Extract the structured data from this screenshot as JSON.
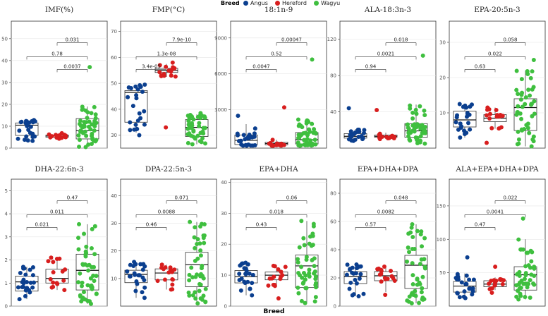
{
  "legend": {
    "title": "Breed",
    "items": [
      {
        "label": "Angus",
        "color": "#0b3f8f"
      },
      {
        "label": "Hereford",
        "color": "#d81e1e"
      },
      {
        "label": "Wagyu",
        "color": "#3fbf3f"
      }
    ]
  },
  "xlabel": "Breed",
  "chart_data": [
    {
      "type": "box",
      "title": "IMF(%)",
      "ylim": [
        0,
        58
      ],
      "yticks": [
        0,
        10,
        20,
        30,
        40,
        50
      ],
      "boxes": [
        {
          "group": "Angus",
          "q1": 5.8,
          "median": 10.5,
          "q3": 11.5,
          "lo": 3.3,
          "hi": 12.6,
          "min": 3.3,
          "max": 12.8
        },
        {
          "group": "Hereford",
          "q1": 5,
          "median": 5.5,
          "q3": 6,
          "lo": 4.5,
          "hi": 6.5,
          "min": 4.3,
          "max": 6.8
        },
        {
          "group": "Wagyu",
          "q1": 4.2,
          "median": 8,
          "q3": 13.5,
          "lo": 0.5,
          "hi": 19,
          "min": 0.5,
          "max": 37
        }
      ],
      "brackets": [
        {
          "from": 1,
          "to": 2,
          "label": "0.0037"
        },
        {
          "from": 0,
          "to": 2,
          "label": "0.78"
        },
        {
          "from": 1,
          "to": 2,
          "label": "0.031"
        }
      ]
    },
    {
      "type": "box",
      "title": "FMP(°C)",
      "ylim": [
        25,
        74
      ],
      "yticks": [
        30,
        40,
        50,
        60,
        70
      ],
      "boxes": [
        {
          "group": "Angus",
          "q1": 35,
          "median": 46.5,
          "q3": 47.2,
          "lo": 31,
          "hi": 49.5,
          "min": 30,
          "max": 49.5
        },
        {
          "group": "Hereford",
          "q1": 54.2,
          "median": 55,
          "q3": 55.8,
          "lo": 52.5,
          "hi": 57.5,
          "min": 33,
          "max": 58
        },
        {
          "group": "Wagyu",
          "q1": 29.5,
          "median": 33,
          "q3": 36,
          "lo": 26.5,
          "hi": 38,
          "min": 26.5,
          "max": 38.5
        }
      ],
      "brackets": [
        {
          "from": 0,
          "to": 1,
          "label": "3.4e-05"
        },
        {
          "from": 0,
          "to": 2,
          "label": "1.3e-08"
        },
        {
          "from": 1,
          "to": 2,
          "label": "7.9e-10"
        }
      ]
    },
    {
      "type": "box",
      "title": "18:1n-9",
      "ylim": [
        -200,
        10400
      ],
      "yticks": [
        3000,
        6000,
        9000
      ],
      "boxes": [
        {
          "group": "Angus",
          "q1": 100,
          "median": 450,
          "q3": 900,
          "lo": 0,
          "hi": 1800,
          "min": 0,
          "max": 2500
        },
        {
          "group": "Hereford",
          "q1": 80,
          "median": 180,
          "q3": 300,
          "lo": 0,
          "hi": 500,
          "min": 0,
          "max": 3200
        },
        {
          "group": "Wagyu",
          "q1": 150,
          "median": 500,
          "q3": 1100,
          "lo": 0,
          "hi": 2200,
          "min": 0,
          "max": 7200
        }
      ],
      "brackets": [
        {
          "from": 0,
          "to": 1,
          "label": "0.0047"
        },
        {
          "from": 0,
          "to": 2,
          "label": "0.52"
        },
        {
          "from": 1,
          "to": 2,
          "label": "0.00047"
        }
      ]
    },
    {
      "type": "box",
      "title": "ALA-18:3n-3",
      "ylim": [
        0,
        140
      ],
      "yticks": [
        40,
        80,
        120
      ],
      "boxes": [
        {
          "group": "Angus",
          "q1": 11,
          "median": 13,
          "q3": 16,
          "lo": 8,
          "hi": 21,
          "min": 8,
          "max": 44
        },
        {
          "group": "Hereford",
          "q1": 12,
          "median": 13,
          "q3": 14.5,
          "lo": 10,
          "hi": 17,
          "min": 10,
          "max": 42
        },
        {
          "group": "Wagyu",
          "q1": 12,
          "median": 19,
          "q3": 27,
          "lo": 5,
          "hi": 48,
          "min": 5,
          "max": 102
        }
      ],
      "brackets": [
        {
          "from": 0,
          "to": 1,
          "label": "0.94"
        },
        {
          "from": 0,
          "to": 2,
          "label": "0.0021"
        },
        {
          "from": 1,
          "to": 2,
          "label": "0.018"
        }
      ]
    },
    {
      "type": "box",
      "title": "EPA-20:5n-3",
      "ylim": [
        0,
        36
      ],
      "yticks": [
        10,
        20,
        30
      ],
      "boxes": [
        {
          "group": "Angus",
          "q1": 6,
          "median": 8,
          "q3": 10.5,
          "lo": 3,
          "hi": 12.5,
          "min": 3,
          "max": 12.5
        },
        {
          "group": "Hereford",
          "q1": 7.5,
          "median": 8.5,
          "q3": 9.5,
          "lo": 5.5,
          "hi": 11.5,
          "min": 1.5,
          "max": 11.5
        },
        {
          "group": "Wagyu",
          "q1": 5,
          "median": 11.5,
          "q3": 14,
          "lo": 0.5,
          "hi": 22,
          "min": 0.5,
          "max": 25
        }
      ],
      "brackets": [
        {
          "from": 0,
          "to": 1,
          "label": "0.63"
        },
        {
          "from": 0,
          "to": 2,
          "label": "0.022"
        },
        {
          "from": 1,
          "to": 2,
          "label": "0.058"
        }
      ]
    },
    {
      "type": "box",
      "title": "DHA-22:6n-3",
      "ylim": [
        0,
        5.5
      ],
      "yticks": [
        0,
        1,
        2,
        3,
        4,
        5
      ],
      "boxes": [
        {
          "group": "Angus",
          "q1": 0.65,
          "median": 1.05,
          "q3": 1.3,
          "lo": 0.3,
          "hi": 1.7,
          "min": 0.3,
          "max": 1.7
        },
        {
          "group": "Hereford",
          "q1": 1,
          "median": 1.2,
          "q3": 1.6,
          "lo": 0.7,
          "hi": 2.1,
          "min": 0.7,
          "max": 2.1
        },
        {
          "group": "Wagyu",
          "q1": 0.7,
          "median": 1.55,
          "q3": 2.25,
          "lo": 0.1,
          "hi": 3.55,
          "min": 0.1,
          "max": 3.55
        }
      ],
      "brackets": [
        {
          "from": 0,
          "to": 1,
          "label": "0.021"
        },
        {
          "from": 0,
          "to": 2,
          "label": "0.011"
        },
        {
          "from": 1,
          "to": 2,
          "label": "0.47"
        }
      ]
    },
    {
      "type": "box",
      "title": "DPA-22:5n-3",
      "ylim": [
        0,
        46
      ],
      "yticks": [
        10,
        20,
        30,
        40
      ],
      "boxes": [
        {
          "group": "Angus",
          "q1": 8.5,
          "median": 11.5,
          "q3": 13,
          "lo": 3,
          "hi": 16,
          "min": 3,
          "max": 16
        },
        {
          "group": "Hereford",
          "q1": 9.5,
          "median": 12,
          "q3": 13.5,
          "lo": 6,
          "hi": 15,
          "min": 6,
          "max": 15
        },
        {
          "group": "Wagyu",
          "q1": 7,
          "median": 15,
          "q3": 19.5,
          "lo": 1,
          "hi": 30.5,
          "min": 1,
          "max": 30.5
        }
      ],
      "brackets": [
        {
          "from": 0,
          "to": 1,
          "label": "0.46"
        },
        {
          "from": 0,
          "to": 2,
          "label": "0.0088"
        },
        {
          "from": 1,
          "to": 2,
          "label": "0.071"
        }
      ]
    },
    {
      "type": "box",
      "title": "EPA+DHA",
      "ylim": [
        0,
        41
      ],
      "yticks": [
        0,
        10,
        20,
        30,
        40
      ],
      "boxes": [
        {
          "group": "Angus",
          "q1": 7.5,
          "median": 9.5,
          "q3": 11.5,
          "lo": 3.5,
          "hi": 14,
          "min": 3.5,
          "max": 14
        },
        {
          "group": "Hereford",
          "q1": 8.5,
          "median": 10,
          "q3": 11,
          "lo": 6.5,
          "hi": 13,
          "min": 2.5,
          "max": 13
        },
        {
          "group": "Wagyu",
          "q1": 6,
          "median": 13,
          "q3": 16.5,
          "lo": 1,
          "hi": 27.5,
          "min": 1,
          "max": 27.5
        }
      ],
      "brackets": [
        {
          "from": 0,
          "to": 1,
          "label": "0.43"
        },
        {
          "from": 0,
          "to": 2,
          "label": "0.018"
        },
        {
          "from": 1,
          "to": 2,
          "label": "0.06"
        }
      ]
    },
    {
      "type": "box",
      "title": "EPA+DHA+DPA",
      "ylim": [
        0,
        90
      ],
      "yticks": [
        0,
        20,
        40,
        60,
        80
      ],
      "boxes": [
        {
          "group": "Angus",
          "q1": 16,
          "median": 21,
          "q3": 24.5,
          "lo": 7,
          "hi": 29.5,
          "min": 7,
          "max": 29.5
        },
        {
          "group": "Hereford",
          "q1": 18,
          "median": 21.5,
          "q3": 24.5,
          "lo": 10,
          "hi": 28,
          "min": 8,
          "max": 28
        },
        {
          "group": "Wagyu",
          "q1": 12.5,
          "median": 29,
          "q3": 36,
          "lo": 2,
          "hi": 58,
          "min": 2,
          "max": 58
        }
      ],
      "brackets": [
        {
          "from": 0,
          "to": 1,
          "label": "0.57"
        },
        {
          "from": 0,
          "to": 2,
          "label": "0.0082"
        },
        {
          "from": 1,
          "to": 2,
          "label": "0.048"
        }
      ]
    },
    {
      "type": "box",
      "title": "ALA+EPA+DHA+DPA",
      "ylim": [
        0,
        190
      ],
      "yticks": [
        50,
        100,
        150
      ],
      "boxes": [
        {
          "group": "Angus",
          "q1": 21,
          "median": 30,
          "q3": 37,
          "lo": 12,
          "hi": 49,
          "min": 12,
          "max": 73
        },
        {
          "group": "Hereford",
          "q1": 29,
          "median": 33,
          "q3": 38,
          "lo": 24,
          "hi": 43,
          "min": 20,
          "max": 59
        },
        {
          "group": "Wagyu",
          "q1": 24,
          "median": 47,
          "q3": 59,
          "lo": 10,
          "hi": 100,
          "min": 10,
          "max": 131
        }
      ],
      "brackets": [
        {
          "from": 0,
          "to": 1,
          "label": "0.47"
        },
        {
          "from": 0,
          "to": 2,
          "label": "0.0041"
        },
        {
          "from": 1,
          "to": 2,
          "label": "0.022"
        }
      ]
    }
  ]
}
